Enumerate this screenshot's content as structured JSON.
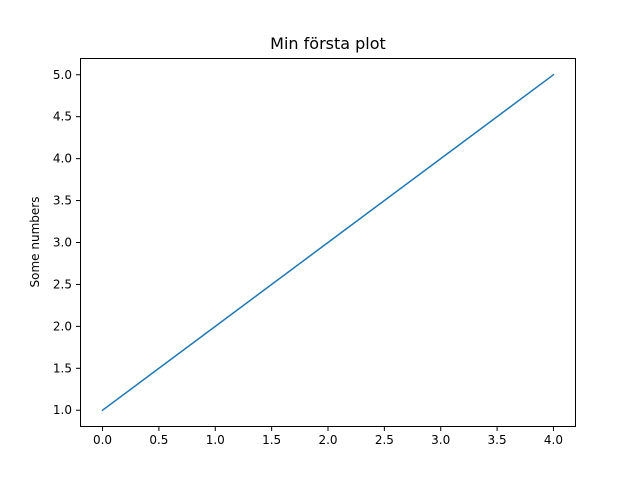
{
  "chart_data": {
    "type": "line",
    "title": "Min första plot",
    "xlabel": "",
    "ylabel": "Some numbers",
    "xlim": [
      -0.2,
      4.2
    ],
    "ylim": [
      0.8,
      5.2
    ],
    "x_ticks": [
      "0.0",
      "0.5",
      "1.0",
      "1.5",
      "2.0",
      "2.5",
      "3.0",
      "3.5",
      "4.0"
    ],
    "y_ticks": [
      "1.0",
      "1.5",
      "2.0",
      "2.5",
      "3.0",
      "3.5",
      "4.0",
      "4.5",
      "5.0"
    ],
    "grid": false,
    "series": [
      {
        "x": [
          0,
          1,
          2,
          3,
          4
        ],
        "y": [
          1,
          2,
          3,
          4,
          5
        ],
        "color": "#1f77b4"
      }
    ]
  }
}
